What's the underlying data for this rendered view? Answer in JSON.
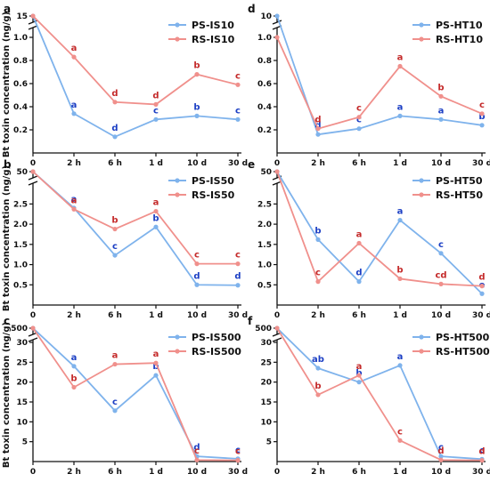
{
  "chart_data": [
    {
      "panel": "a",
      "type": "line",
      "ylabel": "Bt toxin concentration (ng/g)",
      "categories": [
        "0",
        "2 h",
        "6 h",
        "1 d",
        "10 d",
        "30 d"
      ],
      "y_lower_ticks": [
        "0.2",
        "0.4",
        "0.6",
        "0.8",
        "1.0"
      ],
      "y_lower_values": [
        0.2,
        0.4,
        0.6,
        0.8,
        1.0
      ],
      "y_lower_range": [
        0,
        1.0
      ],
      "y_upper_ticks": [
        "15"
      ],
      "y_upper_values": [
        15
      ],
      "series": [
        {
          "name": "PS-IS10",
          "color": "#7fb3ec",
          "values": [
            15,
            0.34,
            0.14,
            0.29,
            0.32,
            0.29
          ],
          "letters": [
            "",
            "a",
            "d",
            "c",
            "b",
            "c"
          ],
          "letter_color": "#1c3fc4"
        },
        {
          "name": "RS-IS10",
          "color": "#f0908c",
          "values": [
            15,
            0.83,
            0.44,
            0.42,
            0.68,
            0.59
          ],
          "letters": [
            "",
            "a",
            "d",
            "d",
            "b",
            "c"
          ],
          "letter_color": "#c42a2a"
        }
      ]
    },
    {
      "panel": "d",
      "type": "line",
      "categories": [
        "0",
        "2 h",
        "6 h",
        "1 d",
        "10 d",
        "30 d"
      ],
      "y_lower_ticks": [
        "0.2",
        "0.4",
        "0.6",
        "0.8",
        "1.0"
      ],
      "y_lower_values": [
        0.2,
        0.4,
        0.6,
        0.8,
        1.0
      ],
      "y_lower_range": [
        0,
        1.0
      ],
      "y_upper_ticks": [
        "10"
      ],
      "y_upper_values": [
        10
      ],
      "series": [
        {
          "name": "PS-HT10",
          "color": "#7fb3ec",
          "values": [
            10,
            0.16,
            0.21,
            0.32,
            0.29,
            0.24
          ],
          "letters": [
            "",
            "d",
            "c",
            "a",
            "a",
            "b"
          ],
          "letter_color": "#1c3fc4"
        },
        {
          "name": "RS-HT10",
          "color": "#f0908c",
          "values": [
            1.0,
            0.21,
            0.31,
            0.75,
            0.49,
            0.34
          ],
          "letters": [
            "",
            "d",
            "c",
            "a",
            "b",
            "c"
          ],
          "letter_color": "#c42a2a"
        }
      ]
    },
    {
      "panel": "b",
      "type": "line",
      "ylabel": "Bt toxin concentration (ng/g)",
      "categories": [
        "0",
        "2 h",
        "6 h",
        "1 d",
        "10 d",
        "30 d"
      ],
      "y_lower_ticks": [
        "0.5",
        "1.0",
        "1.5",
        "2.0",
        "2.5"
      ],
      "y_lower_values": [
        0.5,
        1.0,
        1.5,
        2.0,
        2.5
      ],
      "y_lower_range": [
        0,
        2.75
      ],
      "y_upper_ticks": [
        "50"
      ],
      "y_upper_values": [
        50
      ],
      "series": [
        {
          "name": "PS-IS50",
          "color": "#7fb3ec",
          "values": [
            50,
            2.4,
            1.23,
            1.93,
            0.5,
            0.49
          ],
          "letters": [
            "",
            "a",
            "c",
            "b",
            "d",
            "d"
          ],
          "letter_color": "#1c3fc4"
        },
        {
          "name": "RS-IS50",
          "color": "#f0908c",
          "values": [
            50,
            2.37,
            1.88,
            2.32,
            1.02,
            1.02
          ],
          "letters": [
            "",
            "a",
            "b",
            "a",
            "c",
            "c"
          ],
          "letter_color": "#c42a2a"
        }
      ]
    },
    {
      "panel": "e",
      "type": "line",
      "categories": [
        "0",
        "2 h",
        "6 h",
        "1 d",
        "10 d",
        "30 d"
      ],
      "y_lower_ticks": [
        "0.5",
        "1.0",
        "1.5",
        "2.0",
        "2.5"
      ],
      "y_lower_values": [
        0.5,
        1.0,
        1.5,
        2.0,
        2.5
      ],
      "y_lower_range": [
        0,
        2.75
      ],
      "y_upper_ticks": [
        "50"
      ],
      "y_upper_values": [
        50
      ],
      "series": [
        {
          "name": "PS-HT50",
          "color": "#7fb3ec",
          "values": [
            50,
            1.62,
            0.58,
            2.1,
            1.28,
            0.28
          ],
          "letters": [
            "",
            "b",
            "d",
            "a",
            "c",
            "e"
          ],
          "letter_color": "#1c3fc4"
        },
        {
          "name": "RS-HT50",
          "color": "#f0908c",
          "values": [
            50,
            0.58,
            1.53,
            0.65,
            0.52,
            0.47
          ],
          "letters": [
            "",
            "c",
            "a",
            "b",
            "cd",
            "d"
          ],
          "letter_color": "#c42a2a"
        }
      ]
    },
    {
      "panel": "c",
      "type": "line",
      "ylabel": "Bt toxin concentration (ng/g)",
      "categories": [
        "0",
        "2 h",
        "6 h",
        "1 d",
        "10 d",
        "30 d"
      ],
      "y_lower_ticks": [
        "5",
        "10",
        "15",
        "20",
        "25",
        "30"
      ],
      "y_lower_values": [
        5,
        10,
        15,
        20,
        25,
        30
      ],
      "y_lower_range": [
        0,
        30
      ],
      "y_upper_ticks": [
        "500"
      ],
      "y_upper_values": [
        500
      ],
      "series": [
        {
          "name": "PS-IS500",
          "color": "#7fb3ec",
          "values": [
            500,
            24.0,
            12.8,
            21.7,
            1.3,
            0.7
          ],
          "letters": [
            "",
            "a",
            "c",
            "b",
            "d",
            "c"
          ],
          "letter_color": "#1c3fc4"
        },
        {
          "name": "RS-IS500",
          "color": "#f0908c",
          "values": [
            500,
            18.7,
            24.5,
            24.8,
            0.4,
            0.3
          ],
          "letters": [
            "",
            "b",
            "a",
            "a",
            "c",
            "c"
          ],
          "letter_color": "#c42a2a"
        }
      ]
    },
    {
      "panel": "f",
      "type": "line",
      "categories": [
        "0",
        "2 h",
        "6 h",
        "1 d",
        "10 d",
        "30 d"
      ],
      "y_lower_ticks": [
        "5",
        "10",
        "15",
        "20",
        "25",
        "30"
      ],
      "y_lower_values": [
        5,
        10,
        15,
        20,
        25,
        30
      ],
      "y_lower_range": [
        0,
        30
      ],
      "y_upper_ticks": [
        "500"
      ],
      "y_upper_values": [
        500
      ],
      "series": [
        {
          "name": "PS-HT500",
          "color": "#7fb3ec",
          "values": [
            500,
            23.5,
            20.0,
            24.2,
            1.3,
            0.6
          ],
          "letters": [
            "",
            "ab",
            "b",
            "a",
            "c",
            "c"
          ],
          "letter_color": "#1c3fc4"
        },
        {
          "name": "RS-HT500",
          "color": "#f0908c",
          "values": [
            500,
            16.8,
            21.7,
            5.3,
            0.4,
            0.3
          ],
          "letters": [
            "",
            "b",
            "a",
            "c",
            "d",
            "d"
          ],
          "letter_color": "#c42a2a"
        }
      ]
    }
  ]
}
